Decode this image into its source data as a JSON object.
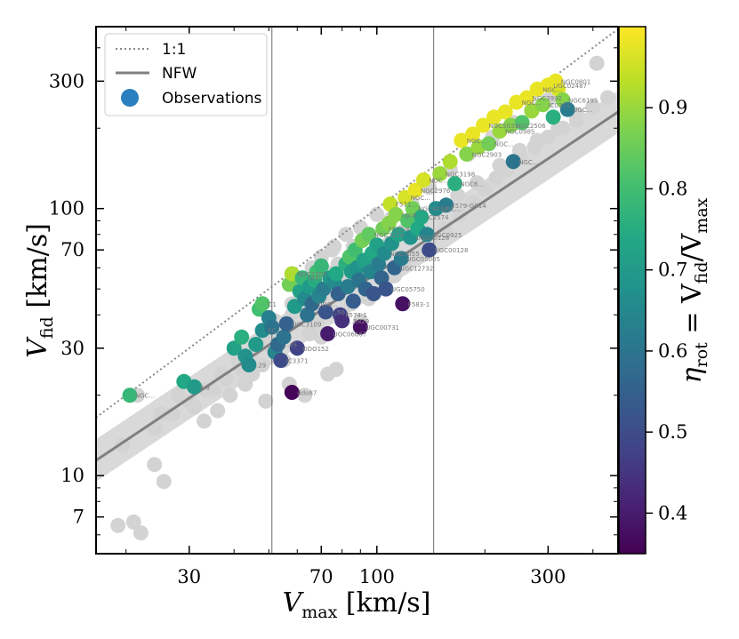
{
  "chart_data": {
    "type": "scatter",
    "xlabel": {
      "main": "V",
      "sub": "max",
      "unit": " [km/s]"
    },
    "ylabel": {
      "main": "V",
      "sub": "fid",
      "unit": " [km/s]"
    },
    "xscale": "log",
    "yscale": "log",
    "xlim": [
      16.5,
      470
    ],
    "ylim": [
      5.1,
      480
    ],
    "x_ticks": [
      30,
      70,
      100,
      300
    ],
    "y_ticks": [
      7,
      10,
      30,
      70,
      100,
      300
    ],
    "x_minor_ticks": [
      20,
      40,
      50,
      60,
      80,
      90,
      200,
      400
    ],
    "y_minor_ticks": [
      6,
      8,
      9,
      20,
      40,
      50,
      60,
      80,
      90,
      200,
      400
    ],
    "vlines": [
      51,
      144
    ],
    "legend": {
      "position": "top-left",
      "entries": [
        {
          "label": "1:1",
          "style": "dotted-line",
          "color": "#8a8a8a"
        },
        {
          "label": "NFW",
          "style": "solid-line",
          "color": "#808080"
        },
        {
          "label": "Observations",
          "style": "marker",
          "color": "#2a7fc0"
        }
      ]
    },
    "colorbar": {
      "label": {
        "prefix": "η",
        "sub1": "rot",
        "mid": " = V",
        "sub2": "fid",
        "slash": "/V",
        "sub3": "max"
      },
      "range": [
        0.35,
        1.0
      ],
      "ticks": [
        0.4,
        0.5,
        0.6,
        0.7,
        0.8,
        0.9
      ]
    },
    "nfw_line": {
      "points": [
        [
          16.5,
          11.4
        ],
        [
          470,
          230
        ]
      ],
      "band_factor": 1.2
    },
    "one_to_one": {
      "points": [
        [
          16.5,
          16.5
        ],
        [
          470,
          470
        ]
      ]
    },
    "simulations": [
      [
        19,
        6.5
      ],
      [
        21,
        6.7
      ],
      [
        22,
        6.1
      ],
      [
        24,
        11
      ],
      [
        25.5,
        9.5
      ],
      [
        19.5,
        13
      ],
      [
        21.5,
        20
      ],
      [
        25,
        17
      ],
      [
        28,
        20
      ],
      [
        31,
        18
      ],
      [
        33,
        16
      ],
      [
        36,
        17.5
      ],
      [
        39,
        20
      ],
      [
        43,
        22
      ],
      [
        49,
        19
      ],
      [
        57,
        22
      ],
      [
        63,
        20
      ],
      [
        73,
        24
      ],
      [
        77,
        25
      ],
      [
        24,
        15
      ],
      [
        27,
        17
      ],
      [
        45,
        24
      ],
      [
        48,
        26
      ],
      [
        30,
        19
      ],
      [
        35,
        21
      ],
      [
        38,
        23
      ],
      [
        42,
        25
      ],
      [
        55,
        27
      ],
      [
        60,
        30
      ],
      [
        65,
        34
      ],
      [
        68,
        38
      ],
      [
        70,
        33
      ],
      [
        80,
        40
      ],
      [
        85,
        44
      ],
      [
        90,
        38
      ],
      [
        95,
        46
      ],
      [
        105,
        50
      ],
      [
        112,
        56
      ],
      [
        120,
        62
      ],
      [
        130,
        68
      ],
      [
        140,
        75
      ],
      [
        155,
        85
      ],
      [
        170,
        95
      ],
      [
        185,
        105
      ],
      [
        200,
        118
      ],
      [
        215,
        130
      ],
      [
        230,
        140
      ],
      [
        250,
        155
      ],
      [
        275,
        170
      ],
      [
        300,
        185
      ],
      [
        330,
        200
      ],
      [
        360,
        215
      ],
      [
        400,
        240
      ],
      [
        440,
        260
      ],
      [
        410,
        350
      ],
      [
        75,
        70
      ],
      [
        82,
        80
      ],
      [
        60,
        55
      ],
      [
        90,
        85
      ],
      [
        100,
        95
      ],
      [
        52,
        38
      ],
      [
        58,
        44
      ],
      [
        62,
        50
      ],
      [
        66,
        46
      ],
      [
        72,
        58
      ],
      [
        78,
        62
      ],
      [
        86,
        72
      ],
      [
        95,
        78
      ],
      [
        110,
        92
      ],
      [
        125,
        105
      ],
      [
        140,
        120
      ],
      [
        160,
        140
      ],
      [
        180,
        160
      ],
      [
        210,
        185
      ],
      [
        240,
        210
      ],
      [
        270,
        235
      ],
      [
        300,
        255
      ],
      [
        46,
        30
      ],
      [
        50,
        33
      ],
      [
        54,
        35
      ],
      [
        58,
        40
      ],
      [
        64,
        42
      ],
      [
        72,
        48
      ],
      [
        80,
        55
      ],
      [
        88,
        60
      ],
      [
        98,
        66
      ],
      [
        108,
        74
      ],
      [
        118,
        82
      ],
      [
        128,
        90
      ],
      [
        148,
        100
      ],
      [
        168,
        112
      ],
      [
        190,
        125
      ],
      [
        220,
        145
      ],
      [
        250,
        165
      ],
      [
        280,
        180
      ],
      [
        320,
        200
      ],
      [
        360,
        225
      ],
      [
        33,
        21
      ],
      [
        37,
        24
      ],
      [
        41,
        27
      ],
      [
        45,
        29
      ],
      [
        49,
        31
      ],
      [
        66,
        60
      ],
      [
        70,
        66
      ],
      [
        76,
        72
      ]
    ],
    "observations": [
      {
        "x": 20.5,
        "y": 20.0,
        "eta": 0.78,
        "label": "NGC..."
      },
      {
        "x": 29,
        "y": 22.5,
        "eta": 0.74,
        "label": ""
      },
      {
        "x": 31,
        "y": 21.5,
        "eta": 0.7,
        "label": "4-8"
      },
      {
        "x": 40,
        "y": 30,
        "eta": 0.72,
        "label": ""
      },
      {
        "x": 42,
        "y": 33,
        "eta": 0.76,
        "label": ""
      },
      {
        "x": 43,
        "y": 28,
        "eta": 0.68,
        "label": ""
      },
      {
        "x": 44,
        "y": 26,
        "eta": 0.66,
        "label": "..29"
      },
      {
        "x": 46,
        "y": 31,
        "eta": 0.7,
        "label": ""
      },
      {
        "x": 48,
        "y": 35,
        "eta": 0.66,
        "label": "SC..."
      },
      {
        "x": 47,
        "y": 42,
        "eta": 0.8,
        "label": ""
      },
      {
        "x": 48,
        "y": 44,
        "eta": 0.82,
        "label": "D1"
      },
      {
        "x": 50,
        "y": 39,
        "eta": 0.63,
        "label": ""
      },
      {
        "x": 51,
        "y": 36,
        "eta": 0.6,
        "label": ""
      },
      {
        "x": 52,
        "y": 29,
        "eta": 0.64,
        "label": ""
      },
      {
        "x": 53,
        "y": 31,
        "eta": 0.57,
        "label": "...45"
      },
      {
        "x": 54,
        "y": 27,
        "eta": 0.5,
        "label": "IC3371"
      },
      {
        "x": 55,
        "y": 33,
        "eta": 0.6,
        "label": ""
      },
      {
        "x": 56,
        "y": 37,
        "eta": 0.55,
        "label": "UGC3109"
      },
      {
        "x": 57,
        "y": 52,
        "eta": 0.86,
        "label": ""
      },
      {
        "x": 58,
        "y": 57,
        "eta": 0.92,
        "label": "NGC1705"
      },
      {
        "x": 59,
        "y": 43,
        "eta": 0.7,
        "label": ""
      },
      {
        "x": 60,
        "y": 30,
        "eta": 0.48,
        "label": "DDO152"
      },
      {
        "x": 58,
        "y": 20.5,
        "eta": 0.36,
        "label": "ddo87"
      },
      {
        "x": 61,
        "y": 49,
        "eta": 0.72,
        "label": ""
      },
      {
        "x": 62,
        "y": 55,
        "eta": 0.78,
        "label": "UGC..."
      },
      {
        "x": 63,
        "y": 46,
        "eta": 0.66,
        "label": ""
      },
      {
        "x": 64,
        "y": 40,
        "eta": 0.6,
        "label": ""
      },
      {
        "x": 65,
        "y": 51,
        "eta": 0.7,
        "label": ""
      },
      {
        "x": 66,
        "y": 44,
        "eta": 0.57,
        "label": "DDO..."
      },
      {
        "x": 67,
        "y": 54,
        "eta": 0.75,
        "label": ""
      },
      {
        "x": 68,
        "y": 58,
        "eta": 0.8,
        "label": ""
      },
      {
        "x": 69,
        "y": 47,
        "eta": 0.64,
        "label": ""
      },
      {
        "x": 70,
        "y": 61,
        "eta": 0.78,
        "label": ""
      },
      {
        "x": 71,
        "y": 50,
        "eta": 0.62,
        "label": ""
      },
      {
        "x": 72,
        "y": 41,
        "eta": 0.52,
        "label": "...50"
      },
      {
        "x": 73,
        "y": 34,
        "eta": 0.4,
        "label": "UGC06667"
      },
      {
        "x": 74,
        "y": 55,
        "eta": 0.7,
        "label": ""
      },
      {
        "x": 76,
        "y": 53,
        "eta": 0.66,
        "label": ""
      },
      {
        "x": 77,
        "y": 57,
        "eta": 0.74,
        "label": ""
      },
      {
        "x": 78,
        "y": 48,
        "eta": 0.55,
        "label": ""
      },
      {
        "x": 79,
        "y": 40,
        "eta": 0.48,
        "label": "F574-1"
      },
      {
        "x": 80,
        "y": 38,
        "eta": 0.44,
        "label": "...5829"
      },
      {
        "x": 82,
        "y": 62,
        "eta": 0.76,
        "label": ""
      },
      {
        "x": 83,
        "y": 51,
        "eta": 0.62,
        "label": ""
      },
      {
        "x": 84,
        "y": 66,
        "eta": 0.82,
        "label": ""
      },
      {
        "x": 85,
        "y": 58,
        "eta": 0.7,
        "label": ""
      },
      {
        "x": 86,
        "y": 45,
        "eta": 0.54,
        "label": ""
      },
      {
        "x": 87,
        "y": 70,
        "eta": 0.8,
        "label": ""
      },
      {
        "x": 88,
        "y": 60,
        "eta": 0.68,
        "label": ""
      },
      {
        "x": 89,
        "y": 54,
        "eta": 0.6,
        "label": ""
      },
      {
        "x": 90,
        "y": 36,
        "eta": 0.38,
        "label": "UGC00731"
      },
      {
        "x": 91,
        "y": 76,
        "eta": 0.86,
        "label": ""
      },
      {
        "x": 92,
        "y": 64,
        "eta": 0.72,
        "label": ""
      },
      {
        "x": 93,
        "y": 50,
        "eta": 0.56,
        "label": ""
      },
      {
        "x": 95,
        "y": 80,
        "eta": 0.84,
        "label": "NGC3274"
      },
      {
        "x": 96,
        "y": 58,
        "eta": 0.64,
        "label": ""
      },
      {
        "x": 97,
        "y": 68,
        "eta": 0.74,
        "label": ""
      },
      {
        "x": 98,
        "y": 48,
        "eta": 0.52,
        "label": ""
      },
      {
        "x": 100,
        "y": 73,
        "eta": 0.72,
        "label": ""
      },
      {
        "x": 101,
        "y": 62,
        "eta": 0.62,
        "label": ""
      },
      {
        "x": 103,
        "y": 55,
        "eta": 0.56,
        "label": ""
      },
      {
        "x": 104,
        "y": 84,
        "eta": 0.86,
        "label": "F571-8"
      },
      {
        "x": 105,
        "y": 68,
        "eta": 0.66,
        "label": "NGC0055"
      },
      {
        "x": 106,
        "y": 50,
        "eta": 0.52,
        "label": "UGC05750"
      },
      {
        "x": 108,
        "y": 88,
        "eta": 0.88,
        "label": ""
      },
      {
        "x": 109,
        "y": 104,
        "eta": 0.94,
        "label": "F571..."
      },
      {
        "x": 110,
        "y": 74,
        "eta": 0.68,
        "label": ""
      },
      {
        "x": 112,
        "y": 60,
        "eta": 0.56,
        "label": "UGC12732"
      },
      {
        "x": 113,
        "y": 95,
        "eta": 0.88,
        "label": "ngc6..."
      },
      {
        "x": 115,
        "y": 80,
        "eta": 0.72,
        "label": ""
      },
      {
        "x": 117,
        "y": 65,
        "eta": 0.62,
        "label": "UGC05005"
      },
      {
        "x": 118,
        "y": 44,
        "eta": 0.38,
        "label": "F583-1"
      },
      {
        "x": 120,
        "y": 110,
        "eta": 0.96,
        "label": "NGC..."
      },
      {
        "x": 122,
        "y": 90,
        "eta": 0.82,
        "label": ""
      },
      {
        "x": 124,
        "y": 78,
        "eta": 0.68,
        "label": "UGC00128"
      },
      {
        "x": 126,
        "y": 100,
        "eta": 0.86,
        "label": "NGC4010"
      },
      {
        "x": 128,
        "y": 117,
        "eta": 0.98,
        "label": "NGC2976"
      },
      {
        "x": 130,
        "y": 84,
        "eta": 0.74,
        "label": ""
      },
      {
        "x": 133,
        "y": 93,
        "eta": 0.74,
        "label": "IC2574"
      },
      {
        "x": 135,
        "y": 128,
        "eta": 0.96,
        "label": "NGC..."
      },
      {
        "x": 138,
        "y": 80,
        "eta": 0.64,
        "label": "UGC0925"
      },
      {
        "x": 140,
        "y": 70,
        "eta": 0.5,
        "label": "UGC00128"
      },
      {
        "x": 146,
        "y": 100,
        "eta": 0.66,
        "label": "UGC..."
      },
      {
        "x": 150,
        "y": 135,
        "eta": 0.9,
        "label": "NGC3198"
      },
      {
        "x": 156,
        "y": 103,
        "eta": 0.62,
        "label": "F579-G014"
      },
      {
        "x": 160,
        "y": 150,
        "eta": 0.92,
        "label": ""
      },
      {
        "x": 165,
        "y": 124,
        "eta": 0.76,
        "label": "NGC6..."
      },
      {
        "x": 172,
        "y": 180,
        "eta": 0.98,
        "label": "NGC..."
      },
      {
        "x": 178,
        "y": 160,
        "eta": 0.88,
        "label": "NGC2903"
      },
      {
        "x": 185,
        "y": 190,
        "eta": 0.98,
        "label": ""
      },
      {
        "x": 192,
        "y": 170,
        "eta": 0.9,
        "label": ""
      },
      {
        "x": 198,
        "y": 205,
        "eta": 0.98,
        "label": "NGC5033"
      },
      {
        "x": 205,
        "y": 175,
        "eta": 0.86,
        "label": "NGC..."
      },
      {
        "x": 212,
        "y": 220,
        "eta": 0.98,
        "label": ""
      },
      {
        "x": 220,
        "y": 195,
        "eta": 0.9,
        "label": "NGC0985"
      },
      {
        "x": 228,
        "y": 230,
        "eta": 0.98,
        "label": ""
      },
      {
        "x": 236,
        "y": 205,
        "eta": 0.88,
        "label": "NGC2506"
      },
      {
        "x": 240,
        "y": 150,
        "eta": 0.6,
        "label": "NGC..."
      },
      {
        "x": 245,
        "y": 250,
        "eta": 0.98,
        "label": "NGC..."
      },
      {
        "x": 254,
        "y": 210,
        "eta": 0.82,
        "label": ""
      },
      {
        "x": 262,
        "y": 260,
        "eta": 0.98,
        "label": "NGC3992"
      },
      {
        "x": 270,
        "y": 232,
        "eta": 0.9,
        "label": ""
      },
      {
        "x": 280,
        "y": 280,
        "eta": 0.98,
        "label": "NGC..."
      },
      {
        "x": 290,
        "y": 245,
        "eta": 0.88,
        "label": "IC0371"
      },
      {
        "x": 300,
        "y": 290,
        "eta": 0.98,
        "label": "UGC02487"
      },
      {
        "x": 310,
        "y": 220,
        "eta": 0.76,
        "label": ""
      },
      {
        "x": 320,
        "y": 280,
        "eta": 0.96,
        "label": ""
      },
      {
        "x": 330,
        "y": 255,
        "eta": 0.88,
        "label": "NGC6195"
      },
      {
        "x": 340,
        "y": 235,
        "eta": 0.62,
        "label": "UGC..."
      },
      {
        "x": 315,
        "y": 300,
        "eta": 0.98,
        "label": "NGC0801"
      }
    ]
  }
}
